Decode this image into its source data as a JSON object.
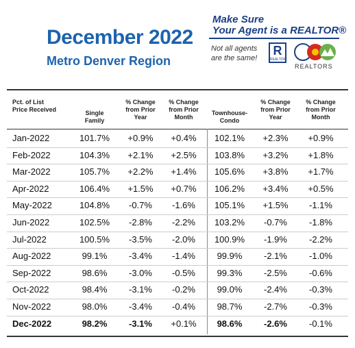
{
  "header": {
    "title": "December 2022",
    "subtitle": "Metro Denver Region"
  },
  "badge": {
    "line1": "Make Sure",
    "line2": "Your Agent is a REALTOR®",
    "tagline": "Not all agents are the same!",
    "logo_text": "REALTOR",
    "association": "REALTORS"
  },
  "table": {
    "columns": [
      "Pct. of List Price Received",
      "Single Family",
      "% Change from Prior Year",
      "% Change from Prior Month",
      "Townhouse-Condo",
      "% Change from Prior Year",
      "% Change from Prior Month"
    ],
    "rows": [
      [
        "Jan-2022",
        "101.7%",
        "+0.9%",
        "+0.4%",
        "102.1%",
        "+2.3%",
        "+0.9%"
      ],
      [
        "Feb-2022",
        "104.3%",
        "+2.1%",
        "+2.5%",
        "103.8%",
        "+3.2%",
        "+1.8%"
      ],
      [
        "Mar-2022",
        "105.7%",
        "+2.2%",
        "+1.4%",
        "105.6%",
        "+3.8%",
        "+1.7%"
      ],
      [
        "Apr-2022",
        "106.4%",
        "+1.5%",
        "+0.7%",
        "106.2%",
        "+3.4%",
        "+0.5%"
      ],
      [
        "May-2022",
        "104.8%",
        "-0.7%",
        "-1.6%",
        "105.1%",
        "+1.5%",
        "-1.1%"
      ],
      [
        "Jun-2022",
        "102.5%",
        "-2.8%",
        "-2.2%",
        "103.2%",
        "-0.7%",
        "-1.8%"
      ],
      [
        "Jul-2022",
        "100.5%",
        "-3.5%",
        "-2.0%",
        "100.9%",
        "-1.9%",
        "-2.2%"
      ],
      [
        "Aug-2022",
        "99.1%",
        "-3.4%",
        "-1.4%",
        "99.9%",
        "-2.1%",
        "-1.0%"
      ],
      [
        "Sep-2022",
        "98.6%",
        "-3.0%",
        "-0.5%",
        "99.3%",
        "-2.5%",
        "-0.6%"
      ],
      [
        "Oct-2022",
        "98.4%",
        "-3.1%",
        "-0.2%",
        "99.0%",
        "-2.4%",
        "-0.3%"
      ],
      [
        "Nov-2022",
        "98.0%",
        "-3.4%",
        "-0.4%",
        "98.7%",
        "-2.7%",
        "-0.3%"
      ],
      [
        "Dec-2022",
        "98.2%",
        "-3.1%",
        "+0.1%",
        "98.6%",
        "-2.6%",
        "-0.1%"
      ]
    ]
  }
}
